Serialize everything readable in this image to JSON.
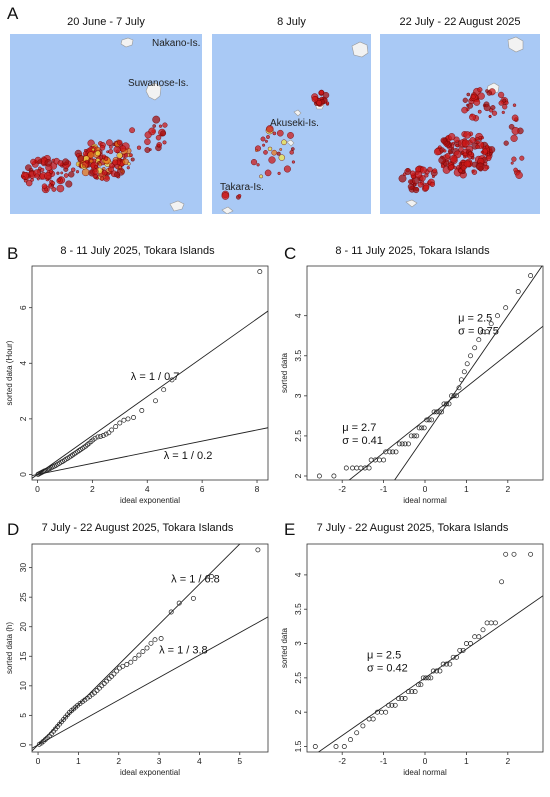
{
  "panel_A": {
    "letter": "A",
    "maps": [
      {
        "title": "20 June - 7 July",
        "labels": [
          "Nakano-Is.",
          "Suwanose-Is."
        ]
      },
      {
        "title": "8 July",
        "labels": [
          "Akuseki-Is.",
          "Takara-Is."
        ]
      },
      {
        "title": "22 July - 22 August 2025",
        "labels": []
      }
    ]
  },
  "colors": {
    "sea": "#a9c9f5",
    "quake_red": "#cc1a1a",
    "quake_orange": "#e8761b",
    "quake_yellow": "#f2e64a",
    "land": "#f2f2f2"
  },
  "chart_data": [
    {
      "panel": "B",
      "type": "scatter",
      "title": "8 - 11 July 2025, Tokara Islands",
      "xlabel": "ideal exponential",
      "ylabel": "sorted data  (Hour)",
      "xlim": [
        -0.2,
        8.4
      ],
      "ylim": [
        -0.2,
        7.5
      ],
      "xticks": [
        0,
        2,
        4,
        6,
        8
      ],
      "yticks": [
        0,
        2,
        4,
        6
      ],
      "lines": [
        {
          "label": "λ = 1 / 0.7",
          "slope": 0.7,
          "intercept": 0
        },
        {
          "label": "λ = 1 / 0.2",
          "slope": 0.2,
          "intercept": 0
        }
      ],
      "points": [
        [
          0.02,
          0.0
        ],
        [
          0.05,
          0.02
        ],
        [
          0.09,
          0.04
        ],
        [
          0.13,
          0.06
        ],
        [
          0.17,
          0.08
        ],
        [
          0.21,
          0.1
        ],
        [
          0.25,
          0.12
        ],
        [
          0.3,
          0.14
        ],
        [
          0.35,
          0.16
        ],
        [
          0.4,
          0.19
        ],
        [
          0.45,
          0.21
        ],
        [
          0.5,
          0.24
        ],
        [
          0.56,
          0.27
        ],
        [
          0.62,
          0.3
        ],
        [
          0.68,
          0.33
        ],
        [
          0.74,
          0.37
        ],
        [
          0.8,
          0.4
        ],
        [
          0.86,
          0.44
        ],
        [
          0.92,
          0.47
        ],
        [
          0.98,
          0.51
        ],
        [
          1.04,
          0.55
        ],
        [
          1.1,
          0.58
        ],
        [
          1.16,
          0.62
        ],
        [
          1.22,
          0.66
        ],
        [
          1.28,
          0.7
        ],
        [
          1.34,
          0.74
        ],
        [
          1.4,
          0.78
        ],
        [
          1.46,
          0.82
        ],
        [
          1.52,
          0.86
        ],
        [
          1.58,
          0.9
        ],
        [
          1.64,
          0.94
        ],
        [
          1.7,
          0.98
        ],
        [
          1.76,
          1.02
        ],
        [
          1.82,
          1.07
        ],
        [
          1.88,
          1.12
        ],
        [
          1.95,
          1.18
        ],
        [
          2.02,
          1.24
        ],
        [
          2.1,
          1.3
        ],
        [
          2.2,
          1.35
        ],
        [
          2.3,
          1.37
        ],
        [
          2.4,
          1.4
        ],
        [
          2.5,
          1.45
        ],
        [
          2.6,
          1.5
        ],
        [
          2.7,
          1.6
        ],
        [
          2.85,
          1.72
        ],
        [
          3.0,
          1.85
        ],
        [
          3.15,
          1.95
        ],
        [
          3.3,
          2.0
        ],
        [
          3.5,
          2.05
        ],
        [
          3.8,
          2.3
        ],
        [
          4.3,
          2.65
        ],
        [
          4.6,
          3.05
        ],
        [
          4.9,
          3.4
        ],
        [
          8.1,
          7.3
        ]
      ]
    },
    {
      "panel": "C",
      "type": "scatter",
      "title": "8 - 11 July 2025, Tokara Islands",
      "xlabel": "ideal normal",
      "ylabel": "sorted data",
      "xlim": [
        -2.85,
        2.85
      ],
      "ylim": [
        1.95,
        4.62
      ],
      "xticks": [
        -2,
        -1,
        0,
        1,
        2
      ],
      "yticks": [
        2.0,
        2.5,
        3.0,
        3.5,
        4.0
      ],
      "lines": [
        {
          "label": "μ = 2.5\nσ = 0.75",
          "slope": 0.75,
          "intercept": 2.5
        },
        {
          "label": "μ = 2.7\nσ = 0.41",
          "slope": 0.41,
          "intercept": 2.7
        }
      ],
      "points": [
        [
          -2.55,
          2.0
        ],
        [
          -2.2,
          2.0
        ],
        [
          -1.9,
          2.1
        ],
        [
          -1.75,
          2.1
        ],
        [
          -1.65,
          2.1
        ],
        [
          -1.55,
          2.1
        ],
        [
          -1.45,
          2.1
        ],
        [
          -1.35,
          2.1
        ],
        [
          -1.3,
          2.2
        ],
        [
          -1.2,
          2.2
        ],
        [
          -1.1,
          2.2
        ],
        [
          -1.0,
          2.2
        ],
        [
          -0.95,
          2.3
        ],
        [
          -0.85,
          2.3
        ],
        [
          -0.78,
          2.3
        ],
        [
          -0.7,
          2.3
        ],
        [
          -0.62,
          2.4
        ],
        [
          -0.55,
          2.4
        ],
        [
          -0.48,
          2.4
        ],
        [
          -0.4,
          2.4
        ],
        [
          -0.33,
          2.5
        ],
        [
          -0.26,
          2.5
        ],
        [
          -0.2,
          2.5
        ],
        [
          -0.14,
          2.6
        ],
        [
          -0.08,
          2.6
        ],
        [
          -0.02,
          2.6
        ],
        [
          0.04,
          2.7
        ],
        [
          0.1,
          2.7
        ],
        [
          0.16,
          2.7
        ],
        [
          0.22,
          2.8
        ],
        [
          0.28,
          2.8
        ],
        [
          0.34,
          2.8
        ],
        [
          0.4,
          2.8
        ],
        [
          0.46,
          2.9
        ],
        [
          0.52,
          2.9
        ],
        [
          0.58,
          2.9
        ],
        [
          0.64,
          3.0
        ],
        [
          0.7,
          3.0
        ],
        [
          0.76,
          3.0
        ],
        [
          0.82,
          3.1
        ],
        [
          0.88,
          3.2
        ],
        [
          0.95,
          3.3
        ],
        [
          1.02,
          3.4
        ],
        [
          1.1,
          3.5
        ],
        [
          1.2,
          3.6
        ],
        [
          1.3,
          3.7
        ],
        [
          1.4,
          3.8
        ],
        [
          1.5,
          3.8
        ],
        [
          1.6,
          3.9
        ],
        [
          1.75,
          4.0
        ],
        [
          1.95,
          4.1
        ],
        [
          2.25,
          4.3
        ],
        [
          2.55,
          4.5
        ]
      ]
    },
    {
      "panel": "D",
      "type": "scatter",
      "title": "7 July - 22 August 2025, Tokara Islands",
      "xlabel": "ideal exponential",
      "ylabel": "sorted data (h)",
      "xlim": [
        -0.15,
        5.7
      ],
      "ylim": [
        -1.2,
        34
      ],
      "xticks": [
        0,
        1,
        2,
        3,
        4,
        5
      ],
      "yticks": [
        0,
        5,
        10,
        15,
        20,
        25,
        30
      ],
      "lines": [
        {
          "label": "λ = 1 / 6.8",
          "slope": 6.8,
          "intercept": 0
        },
        {
          "label": "λ = 1 / 3.8",
          "slope": 3.8,
          "intercept": 0
        }
      ],
      "points": [
        [
          0.03,
          0.1
        ],
        [
          0.08,
          0.3
        ],
        [
          0.13,
          0.6
        ],
        [
          0.18,
          0.9
        ],
        [
          0.23,
          1.2
        ],
        [
          0.28,
          1.5
        ],
        [
          0.33,
          1.9
        ],
        [
          0.38,
          2.3
        ],
        [
          0.43,
          2.7
        ],
        [
          0.48,
          3.1
        ],
        [
          0.53,
          3.5
        ],
        [
          0.58,
          3.9
        ],
        [
          0.63,
          4.3
        ],
        [
          0.68,
          4.7
        ],
        [
          0.73,
          5.1
        ],
        [
          0.78,
          5.5
        ],
        [
          0.83,
          5.8
        ],
        [
          0.88,
          6.1
        ],
        [
          0.93,
          6.4
        ],
        [
          0.98,
          6.7
        ],
        [
          1.04,
          7.0
        ],
        [
          1.1,
          7.3
        ],
        [
          1.16,
          7.6
        ],
        [
          1.22,
          7.9
        ],
        [
          1.28,
          8.2
        ],
        [
          1.34,
          8.5
        ],
        [
          1.4,
          8.8
        ],
        [
          1.46,
          9.2
        ],
        [
          1.52,
          9.6
        ],
        [
          1.58,
          10.0
        ],
        [
          1.64,
          10.4
        ],
        [
          1.7,
          10.8
        ],
        [
          1.76,
          11.2
        ],
        [
          1.82,
          11.6
        ],
        [
          1.88,
          12.0
        ],
        [
          1.95,
          12.5
        ],
        [
          2.02,
          13.0
        ],
        [
          2.1,
          13.3
        ],
        [
          2.2,
          13.6
        ],
        [
          2.3,
          14.0
        ],
        [
          2.4,
          14.6
        ],
        [
          2.5,
          15.2
        ],
        [
          2.6,
          15.8
        ],
        [
          2.7,
          16.4
        ],
        [
          2.8,
          17.2
        ],
        [
          2.9,
          17.8
        ],
        [
          3.05,
          18.0
        ],
        [
          3.3,
          22.5
        ],
        [
          3.5,
          24.0
        ],
        [
          3.85,
          24.8
        ],
        [
          4.3,
          28.5
        ],
        [
          5.45,
          33.0
        ]
      ]
    },
    {
      "panel": "E",
      "type": "scatter",
      "title": "7 July - 22 August 2025, Tokara Islands",
      "xlabel": "ideal normal",
      "ylabel": "sorted data",
      "xlim": [
        -2.85,
        2.85
      ],
      "ylim": [
        1.42,
        4.45
      ],
      "xticks": [
        -2,
        -1,
        0,
        1,
        2
      ],
      "yticks": [
        1.5,
        2.0,
        2.5,
        3.0,
        3.5,
        4.0
      ],
      "lines": [
        {
          "label": "μ = 2.5\nσ = 0.42",
          "slope": 0.42,
          "intercept": 2.5
        }
      ],
      "points": [
        [
          -2.65,
          1.5
        ],
        [
          -2.15,
          1.5
        ],
        [
          -1.95,
          1.5
        ],
        [
          -1.8,
          1.6
        ],
        [
          -1.65,
          1.7
        ],
        [
          -1.5,
          1.8
        ],
        [
          -1.35,
          1.9
        ],
        [
          -1.25,
          1.9
        ],
        [
          -1.15,
          2.0
        ],
        [
          -1.05,
          2.0
        ],
        [
          -0.95,
          2.0
        ],
        [
          -0.88,
          2.1
        ],
        [
          -0.8,
          2.1
        ],
        [
          -0.72,
          2.1
        ],
        [
          -0.64,
          2.2
        ],
        [
          -0.56,
          2.2
        ],
        [
          -0.48,
          2.2
        ],
        [
          -0.4,
          2.3
        ],
        [
          -0.32,
          2.3
        ],
        [
          -0.24,
          2.3
        ],
        [
          -0.16,
          2.4
        ],
        [
          -0.1,
          2.4
        ],
        [
          -0.04,
          2.5
        ],
        [
          0.02,
          2.5
        ],
        [
          0.08,
          2.5
        ],
        [
          0.14,
          2.5
        ],
        [
          0.2,
          2.6
        ],
        [
          0.28,
          2.6
        ],
        [
          0.36,
          2.6
        ],
        [
          0.44,
          2.7
        ],
        [
          0.52,
          2.7
        ],
        [
          0.6,
          2.7
        ],
        [
          0.68,
          2.8
        ],
        [
          0.76,
          2.8
        ],
        [
          0.84,
          2.9
        ],
        [
          0.92,
          2.9
        ],
        [
          1.0,
          3.0
        ],
        [
          1.1,
          3.0
        ],
        [
          1.2,
          3.1
        ],
        [
          1.3,
          3.1
        ],
        [
          1.4,
          3.2
        ],
        [
          1.5,
          3.3
        ],
        [
          1.6,
          3.3
        ],
        [
          1.7,
          3.3
        ],
        [
          1.85,
          3.9
        ],
        [
          1.95,
          4.3
        ],
        [
          2.15,
          4.3
        ],
        [
          2.55,
          4.3
        ]
      ]
    }
  ]
}
